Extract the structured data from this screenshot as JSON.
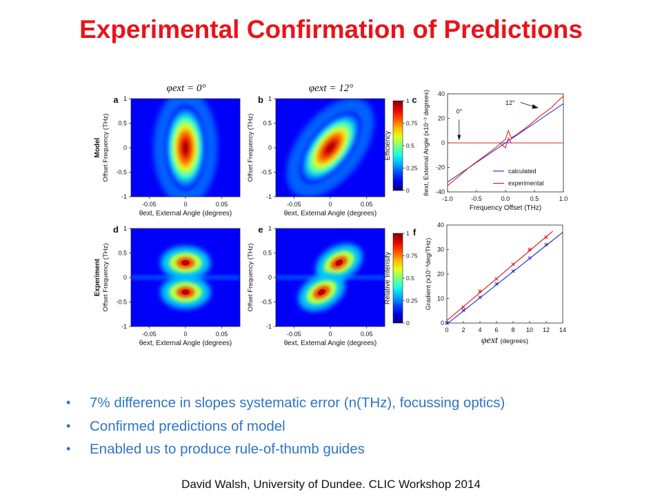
{
  "slide": {
    "title": "Experimental Confirmation of Predictions",
    "bullets": [
      "7% difference in slopes systematic error (n(THz), focussing optics)",
      "Confirmed predictions of model",
      "Enabled us to produce rule-of-thumb guides"
    ],
    "footer": "David Walsh, University of Dundee. CLIC Workshop 2014"
  },
  "colors": {
    "title": "#e8141b",
    "bullets": "#2e74c9",
    "calculated": "#2d35c8",
    "experimental": "#e02020"
  },
  "figure": {
    "row_labels": [
      "Model",
      "Experiment"
    ],
    "col_headers": [
      "φext = 0°",
      "φext = 12°"
    ],
    "panel_letters": [
      "a",
      "b",
      "c",
      "d",
      "e",
      "f"
    ],
    "heatmap_ylabel": "Offset Frequency (THz)",
    "heatmap_xlabel": "θext, External Angle (degrees)",
    "heatmap_xticks": [
      "-0.05",
      "0",
      "0.05"
    ],
    "heatmap_yticks": [
      "1",
      "0.5",
      "0",
      "-0.5",
      "-1"
    ],
    "colorbar_c_label": "Efficiency",
    "colorbar_f_label": "Relative Intensity",
    "colorbar_ticks": [
      "1",
      "0.75",
      "0.5",
      "0.25",
      "0"
    ]
  },
  "chart_data": [
    {
      "type": "heatmap",
      "panel": "a",
      "title": "φext = 0°",
      "xlabel": "θext, External Angle (degrees)",
      "ylabel": "Offset Frequency (THz)",
      "xlim": [
        -0.075,
        0.075
      ],
      "ylim": [
        -1,
        1
      ],
      "peak": {
        "x": 0,
        "y": 0
      },
      "tilt": 0,
      "width_x": 0.012,
      "width_y": 0.42
    },
    {
      "type": "heatmap",
      "panel": "b",
      "title": "φext = 12°",
      "xlabel": "θext, External Angle (degrees)",
      "ylabel": "Offset Frequency (THz)",
      "xlim": [
        -0.075,
        0.075
      ],
      "ylim": [
        -1,
        1
      ],
      "peak": {
        "x": 0,
        "y": 0
      },
      "tilt": 12,
      "width_x": 0.012,
      "width_y": 0.42
    },
    {
      "type": "line",
      "panel": "c",
      "xlabel": "Frequency Offset (THz)",
      "ylabel": "θext, External Angle (x10⁻³ degrees)",
      "xlim": [
        -1,
        1
      ],
      "ylim": [
        -40,
        40
      ],
      "xticks": [
        -1.0,
        -0.5,
        0.0,
        0.5,
        1.0
      ],
      "yticks": [
        -40,
        -20,
        0,
        20,
        40
      ],
      "annotations": [
        "0°",
        "12°"
      ],
      "legend": "bottom-right",
      "series": [
        {
          "name": "calculated",
          "x": [
            -1,
            1
          ],
          "y": [
            -32,
            32
          ]
        },
        {
          "name": "calculated",
          "x": [
            -1,
            1
          ],
          "y": [
            0,
            0
          ]
        },
        {
          "name": "experimental",
          "x": [
            -1.0,
            -0.8,
            -0.6,
            -0.4,
            -0.2,
            0.0,
            0.05,
            0.1,
            0.2,
            0.4,
            0.6,
            0.8,
            0.9,
            1.0
          ],
          "y": [
            -35,
            -27,
            -19,
            -12,
            -5,
            3,
            10,
            4,
            7,
            14,
            22,
            29,
            34,
            38
          ]
        },
        {
          "name": "experimental",
          "x": [
            -1.0,
            -0.5,
            -0.1,
            0.0,
            0.05,
            0.1,
            0.5,
            1.0
          ],
          "y": [
            0,
            0,
            0,
            -4,
            4,
            0,
            0,
            0
          ]
        }
      ]
    },
    {
      "type": "heatmap",
      "panel": "d",
      "xlabel": "θext, External Angle (degrees)",
      "ylabel": "Offset Frequency (THz)",
      "xlim": [
        -0.075,
        0.075
      ],
      "ylim": [
        -1,
        1
      ],
      "lobes": [
        {
          "x": 0,
          "y": 0.3
        },
        {
          "x": 0,
          "y": -0.3
        }
      ],
      "tilt": 0
    },
    {
      "type": "heatmap",
      "panel": "e",
      "xlabel": "θext, External Angle (degrees)",
      "ylabel": "Offset Frequency (THz)",
      "xlim": [
        -0.075,
        0.075
      ],
      "ylim": [
        -1,
        1
      ],
      "lobes": [
        {
          "x": 0.012,
          "y": 0.3
        },
        {
          "x": -0.012,
          "y": -0.3
        }
      ],
      "tilt": 12
    },
    {
      "type": "scatter",
      "panel": "f",
      "xlabel": "φext (degrees)",
      "ylabel": "Gradient (x10⁻³deg/THz)",
      "xlim": [
        0,
        14
      ],
      "ylim": [
        0,
        40
      ],
      "xticks": [
        0,
        2,
        4,
        6,
        8,
        10,
        12,
        14
      ],
      "yticks": [
        0,
        10,
        20,
        30,
        40
      ],
      "series": [
        {
          "name": "experimental",
          "x": [
            0,
            2,
            4,
            6,
            8,
            10,
            12
          ],
          "y": [
            0,
            6.5,
            13,
            18,
            24,
            30,
            35
          ]
        },
        {
          "name": "calculated",
          "x": [
            0,
            2,
            4,
            6,
            8,
            10,
            12
          ],
          "y": [
            0,
            5.2,
            10.5,
            16,
            21.2,
            26.5,
            32
          ]
        }
      ],
      "fits": [
        {
          "name": "experimental",
          "x": [
            0,
            12.8
          ],
          "y": [
            1,
            37.5
          ]
        },
        {
          "name": "calculated",
          "x": [
            0,
            14
          ],
          "y": [
            -0.4,
            37
          ]
        }
      ]
    }
  ]
}
